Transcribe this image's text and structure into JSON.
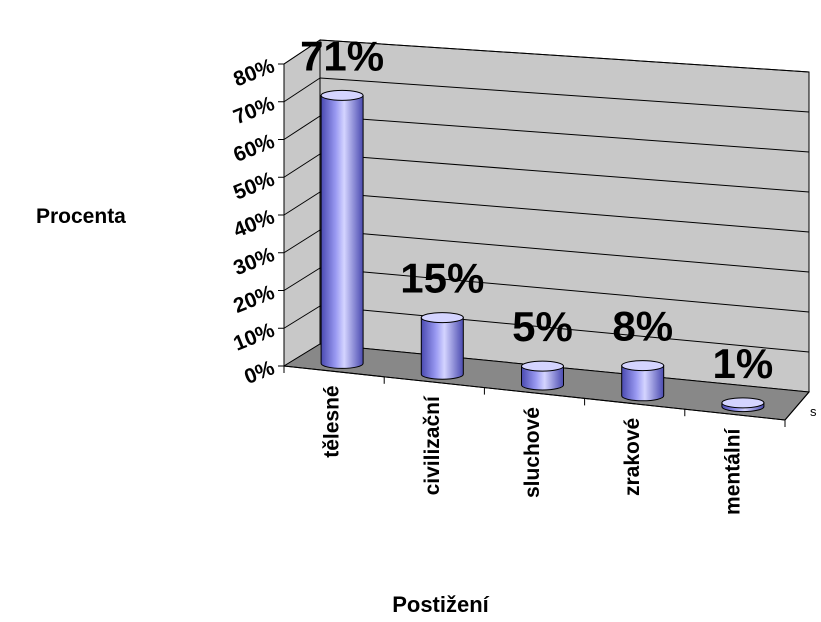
{
  "chart_data": {
    "type": "bar",
    "categories": [
      "tělesné",
      "civilizační",
      "sluchové",
      "zrakové",
      "mentální"
    ],
    "series": [
      {
        "values": [
          71,
          15,
          5,
          8,
          1
        ]
      }
    ],
    "data_labels": [
      "71%",
      "15%",
      "5%",
      "8%",
      "1%"
    ],
    "ytick_labels": [
      "0%",
      "10%",
      "20%",
      "30%",
      "40%",
      "50%",
      "60%",
      "70%",
      "80%"
    ],
    "ylim": [
      0,
      80
    ],
    "xlabel": "Postižení",
    "ylabel": "Procenta",
    "grid": true,
    "legend": "none",
    "depth_axis_label": "s",
    "colors": {
      "bar": "#9a9af2",
      "bar_light": "#d4d4ff",
      "bar_dark": "#4a4ab0",
      "wall": "#c8c8c8",
      "floor": "#888888",
      "grid": "#000000"
    }
  }
}
